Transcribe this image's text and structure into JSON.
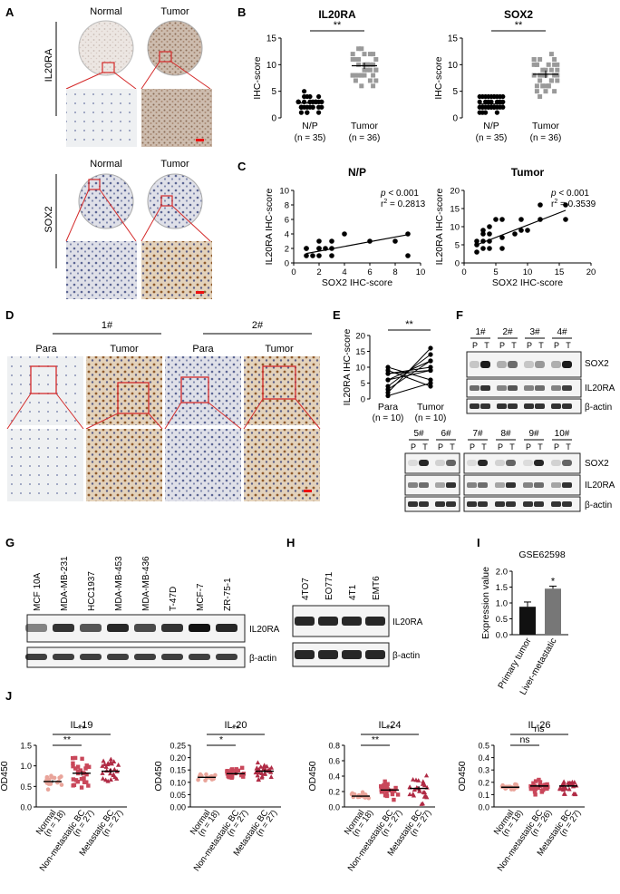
{
  "panels": {
    "A": {
      "letter": "A",
      "col_normal": "Normal",
      "col_tumor": "Tumor",
      "row1": "IL20RA",
      "row2": "SOX2"
    },
    "B": {
      "letter": "B"
    },
    "C": {
      "letter": "C"
    },
    "D": {
      "letter": "D",
      "group1": "1#",
      "group2": "2#",
      "para": "Para",
      "tumor": "Tumor"
    },
    "E": {
      "letter": "E"
    },
    "F": {
      "letter": "F",
      "lanes_top": [
        "1#",
        "2#",
        "3#",
        "4#"
      ],
      "lanes_bottom_left": [
        "5#",
        "6#"
      ],
      "lanes_bottom_right": [
        "7#",
        "8#",
        "9#",
        "10#"
      ],
      "p": "P",
      "t": "T",
      "labels": [
        "SOX2",
        "IL20RA",
        "β-actin"
      ]
    },
    "G": {
      "letter": "G",
      "cell_lines": [
        "MCF 10A",
        "MDA-MB-231",
        "HCC1937",
        "MDA-MB-453",
        "MDA-MB-436",
        "T-47D",
        "MCF-7",
        "ZR-75-1"
      ],
      "labels": [
        "IL20RA",
        "β-actin"
      ]
    },
    "H": {
      "letter": "H",
      "cell_lines": [
        "4TO7",
        "EO771",
        "4T1",
        "EMT6"
      ],
      "labels": [
        "IL20RA",
        "β-actin"
      ]
    },
    "I": {
      "letter": "I"
    },
    "J": {
      "letter": "J"
    }
  },
  "chart_data": [
    {
      "id": "B1",
      "type": "scatter",
      "title": "IL20RA",
      "ylabel": "IHC-score",
      "ylim": [
        0,
        15
      ],
      "yticks": [
        0,
        5,
        10,
        15
      ],
      "categories": [
        "N/P\n(n = 35)",
        "Tumor\n(n = 36)"
      ],
      "means": [
        2.8,
        9.8
      ],
      "sem": [
        0.3,
        0.6
      ],
      "sig": "**",
      "cat_labels": [
        [
          "N/P",
          "(n = 35)"
        ],
        [
          "Tumor",
          "(n = 36)"
        ]
      ],
      "colors": [
        "#000000",
        "#9a9a9a"
      ]
    },
    {
      "id": "B2",
      "type": "scatter",
      "title": "SOX2",
      "ylabel": "IHC-score",
      "ylim": [
        0,
        15
      ],
      "yticks": [
        0,
        5,
        10,
        15
      ],
      "categories": [
        "N/P\n(n = 35)",
        "Tumor\n(n = 36)"
      ],
      "means": [
        2.6,
        8.2
      ],
      "sem": [
        0.3,
        0.7
      ],
      "sig": "**",
      "cat_labels": [
        [
          "N/P",
          "(n = 35)"
        ],
        [
          "Tumor",
          "(n = 36)"
        ]
      ],
      "colors": [
        "#000000",
        "#9a9a9a"
      ]
    },
    {
      "id": "C1",
      "type": "scatter",
      "title": "N/P",
      "xlabel": "SOX2 IHC-score",
      "ylabel": "IL20RA IHC-score",
      "xlim": [
        0,
        10
      ],
      "ylim": [
        0,
        10
      ],
      "xticks": [
        0,
        2,
        4,
        6,
        8,
        10
      ],
      "yticks": [
        0,
        2,
        4,
        6,
        8,
        10
      ],
      "pval": "< 0.001",
      "r2": "= 0.2813",
      "points": [
        [
          1,
          1
        ],
        [
          1,
          2
        ],
        [
          1,
          2
        ],
        [
          1.5,
          1
        ],
        [
          2,
          2
        ],
        [
          2,
          1
        ],
        [
          2,
          3
        ],
        [
          2,
          2
        ],
        [
          2.5,
          2
        ],
        [
          3,
          2
        ],
        [
          3,
          3
        ],
        [
          3,
          1
        ],
        [
          4,
          4
        ],
        [
          6,
          3
        ],
        [
          8,
          3
        ],
        [
          9,
          4
        ],
        [
          9,
          1
        ]
      ],
      "fit": [
        [
          1,
          1.3
        ],
        [
          9,
          3.9
        ]
      ]
    },
    {
      "id": "C2",
      "type": "scatter",
      "title": "Tumor",
      "xlabel": "SOX2 IHC-score",
      "ylabel": "IL20RA IHC-score",
      "xlim": [
        0,
        20
      ],
      "ylim": [
        0,
        20
      ],
      "xticks": [
        0,
        5,
        10,
        15,
        20
      ],
      "yticks": [
        0,
        5,
        10,
        15,
        20
      ],
      "pval": "< 0.001",
      "r2": "= 0.3539",
      "points": [
        [
          2,
          6
        ],
        [
          2,
          5
        ],
        [
          2,
          3
        ],
        [
          3,
          4
        ],
        [
          3,
          6
        ],
        [
          3,
          8
        ],
        [
          3,
          9
        ],
        [
          4,
          4
        ],
        [
          4,
          6
        ],
        [
          4,
          8
        ],
        [
          4,
          10
        ],
        [
          5,
          12
        ],
        [
          6,
          7
        ],
        [
          6,
          12
        ],
        [
          6,
          4
        ],
        [
          8,
          8
        ],
        [
          9,
          9
        ],
        [
          9,
          12
        ],
        [
          10,
          9
        ],
        [
          12,
          12
        ],
        [
          12,
          16
        ],
        [
          16,
          12
        ],
        [
          16,
          16
        ]
      ],
      "fit": [
        [
          2,
          5
        ],
        [
          16,
          14.5
        ]
      ]
    },
    {
      "id": "E",
      "type": "line",
      "ylabel": "IL20RA IHC-score",
      "ylim": [
        0,
        20
      ],
      "yticks": [
        0,
        5,
        10,
        15,
        20
      ],
      "categories": [
        "Para\n(n = 10)",
        "Tumor\n(n = 10)"
      ],
      "sig": "**",
      "cat_labels": [
        [
          "Para",
          "(n = 10)"
        ],
        [
          "Tumor",
          "(n = 10)"
        ]
      ],
      "pairs": [
        [
          2,
          16
        ],
        [
          3,
          12
        ],
        [
          4,
          14
        ],
        [
          6,
          12
        ],
        [
          6,
          9
        ],
        [
          8,
          10
        ],
        [
          9,
          4
        ],
        [
          10,
          6
        ],
        [
          8,
          9
        ],
        [
          1,
          5
        ]
      ]
    },
    {
      "id": "I",
      "type": "bar",
      "title": "GSE62598",
      "ylabel": "Expression value",
      "ylim": [
        0.0,
        2.0
      ],
      "yticks": [
        "0.0",
        "0.5",
        "1.0",
        "1.5",
        "2.0"
      ],
      "categories": [
        "Primary tumor",
        "Liver-metastatic"
      ],
      "values": [
        0.88,
        1.45
      ],
      "errors": [
        0.15,
        0.08
      ],
      "sig": [
        "",
        "*"
      ],
      "colors": [
        "#111111",
        "#777777"
      ]
    },
    {
      "id": "J1",
      "type": "scatter",
      "title": "IL-19",
      "ylabel": "OD450",
      "ylim": [
        0.0,
        1.5
      ],
      "yticks": [
        "0.0",
        "0.5",
        "1.0",
        "1.5"
      ],
      "cat_labels": [
        [
          "Normal",
          "(n = 18)"
        ],
        [
          "Non-metastatic BC",
          "(n = 27)"
        ],
        [
          "Metastatic BC",
          "(n = 27)"
        ]
      ],
      "means": [
        0.62,
        0.82,
        0.87
      ],
      "spread": [
        0.12,
        0.22,
        0.22
      ],
      "sig": [
        [
          "1",
          "**"
        ],
        [
          "2",
          "**"
        ]
      ]
    },
    {
      "id": "J2",
      "type": "scatter",
      "title": "IL-20",
      "ylabel": "OD450",
      "ylim": [
        0.0,
        0.25
      ],
      "yticks": [
        "0.00",
        "0.05",
        "0.10",
        "0.15",
        "0.20",
        "0.25"
      ],
      "cat_labels": [
        [
          "Normal",
          "(n = 18)"
        ],
        [
          "Non-metastatic BC",
          "(n = 27)"
        ],
        [
          "Metastatic BC",
          "(n = 27)"
        ]
      ],
      "means": [
        0.12,
        0.135,
        0.145
      ],
      "spread": [
        0.01,
        0.02,
        0.025
      ],
      "sig": [
        [
          "1",
          "*"
        ],
        [
          "2",
          "**"
        ]
      ]
    },
    {
      "id": "J3",
      "type": "scatter",
      "title": "IL-24",
      "ylabel": "OD450",
      "ylim": [
        0.0,
        0.8
      ],
      "yticks": [
        "0.0",
        "0.2",
        "0.4",
        "0.6",
        "0.8"
      ],
      "cat_labels": [
        [
          "Normal",
          "(n = 18)"
        ],
        [
          "Non-metastatic BC",
          "(n = 27)"
        ],
        [
          "Metastatic BC",
          "(n = 27)"
        ]
      ],
      "means": [
        0.14,
        0.22,
        0.24
      ],
      "spread": [
        0.03,
        0.08,
        0.12
      ],
      "sig": [
        [
          "1",
          "**"
        ],
        [
          "2",
          "**"
        ]
      ]
    },
    {
      "id": "J4",
      "type": "scatter",
      "title": "IL-26",
      "ylabel": "OD450",
      "ylim": [
        0.0,
        0.5
      ],
      "yticks": [
        "0.0",
        "0.1",
        "0.2",
        "0.3",
        "0.4",
        "0.5"
      ],
      "cat_labels": [
        [
          "Normal",
          "(n = 18)"
        ],
        [
          "Non-metastatic BC",
          "(n = 26)"
        ],
        [
          "Metastatic BC",
          "(n = 27)"
        ]
      ],
      "means": [
        0.16,
        0.17,
        0.17
      ],
      "spread": [
        0.02,
        0.04,
        0.04
      ],
      "sig": [
        [
          "1",
          "ns"
        ],
        [
          "2",
          "ns"
        ]
      ]
    }
  ],
  "colors": {
    "accent_red": "#d42a2a",
    "pink": "#e8a29a",
    "gray_marker": "#9a9a9a",
    "j_normal": "#e9a49a",
    "j_nonmet": "#c9475a",
    "j_met": "#b02b45"
  }
}
